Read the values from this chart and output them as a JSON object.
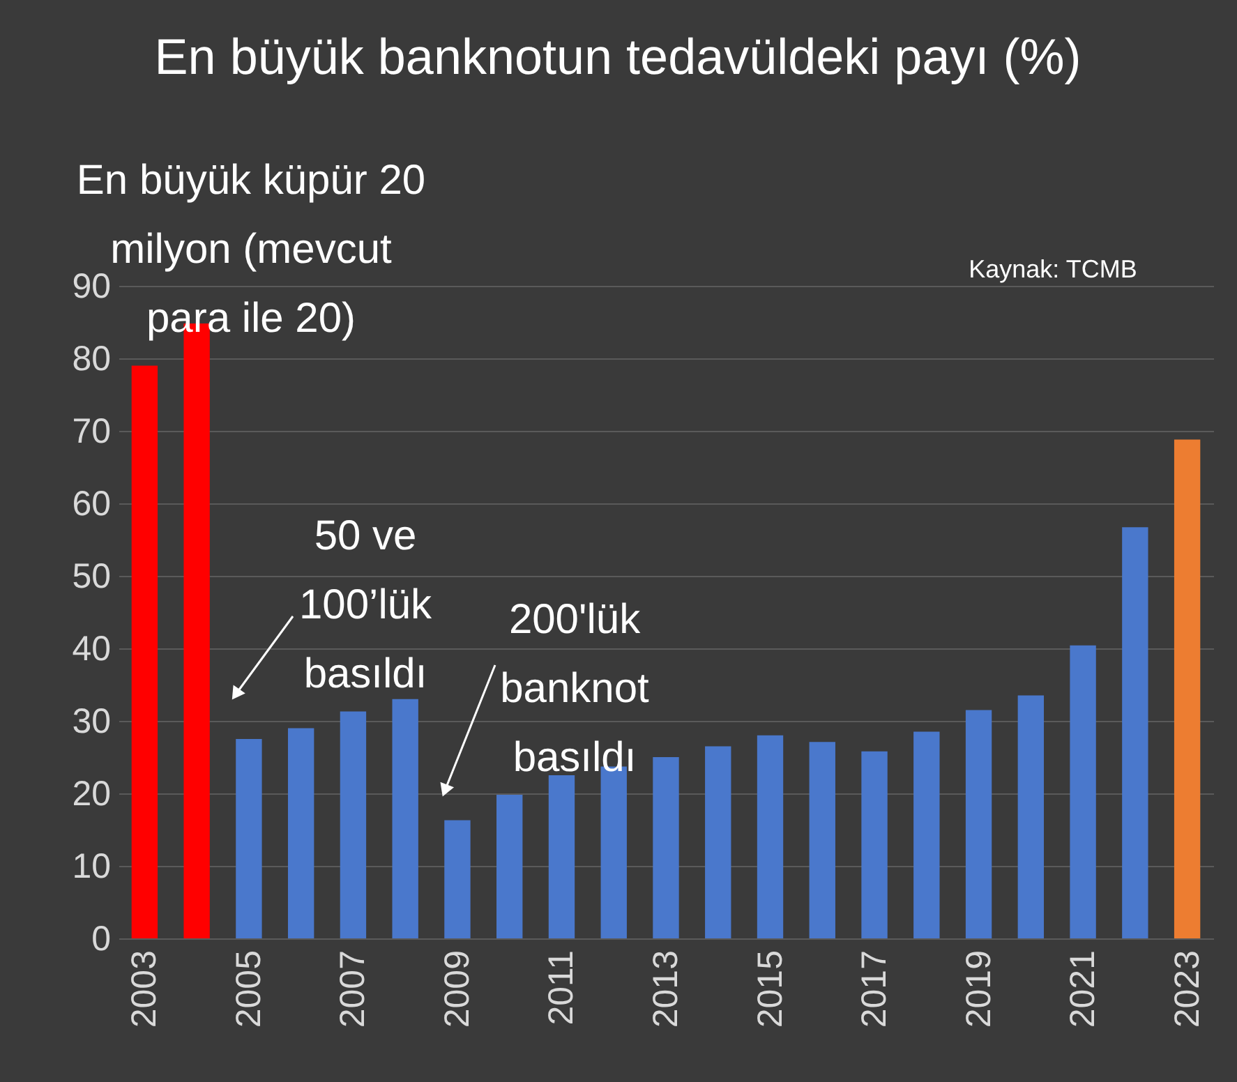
{
  "chart_data": {
    "type": "bar",
    "title": "En büyük banknotun tedavüldeki payı (%)",
    "categories": [
      "2003",
      null,
      "2005",
      null,
      "2007",
      null,
      "2009",
      null,
      "2011",
      null,
      "2013",
      null,
      "2015",
      null,
      "2017",
      null,
      "2019",
      null,
      "2021",
      null,
      "2023"
    ],
    "values": [
      79,
      84.8,
      27.5,
      29,
      31.3,
      33,
      16.3,
      19.8,
      22.5,
      23.7,
      25,
      26.5,
      28,
      27.1,
      25.8,
      28.5,
      31.5,
      33.5,
      40.4,
      56.7,
      68.8
    ],
    "colors": [
      "#ff0000",
      "#ff0000",
      "#4a78cc",
      "#4a78cc",
      "#4a78cc",
      "#4a78cc",
      "#4a78cc",
      "#4a78cc",
      "#4a78cc",
      "#4a78cc",
      "#4a78cc",
      "#4a78cc",
      "#4a78cc",
      "#4a78cc",
      "#4a78cc",
      "#4a78cc",
      "#4a78cc",
      "#4a78cc",
      "#4a78cc",
      "#4a78cc",
      "#ed7d31"
    ],
    "ylim": [
      0,
      90
    ],
    "yticks": [
      0,
      10,
      20,
      30,
      40,
      50,
      60,
      70,
      80,
      90
    ],
    "grid": "y",
    "annotations": [
      "En büyük küpür 20\nmilyon (mevcut\npara ile 20)",
      "Kaynak: TCMB",
      "50 ve\n100’lük\nbasıldı",
      "200'lük\nbanknot\nbasıldı"
    ]
  }
}
